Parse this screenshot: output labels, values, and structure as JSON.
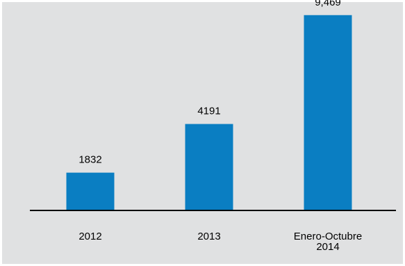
{
  "chart_data": {
    "type": "bar",
    "categories": [
      [
        "2012"
      ],
      [
        "2013"
      ],
      [
        "Enero-Octubre",
        "2014"
      ]
    ],
    "values": [
      1832,
      4191,
      9469
    ],
    "value_labels": [
      "1832",
      "4191",
      "9,469"
    ],
    "title": "",
    "xlabel": "",
    "ylabel": "",
    "ylim": [
      0,
      10000
    ],
    "grid": false,
    "legend": "none",
    "colors": {
      "bar": "#0a7ec2",
      "background": "#e0e1e2",
      "axis": "#000000",
      "text": "#000000"
    }
  }
}
